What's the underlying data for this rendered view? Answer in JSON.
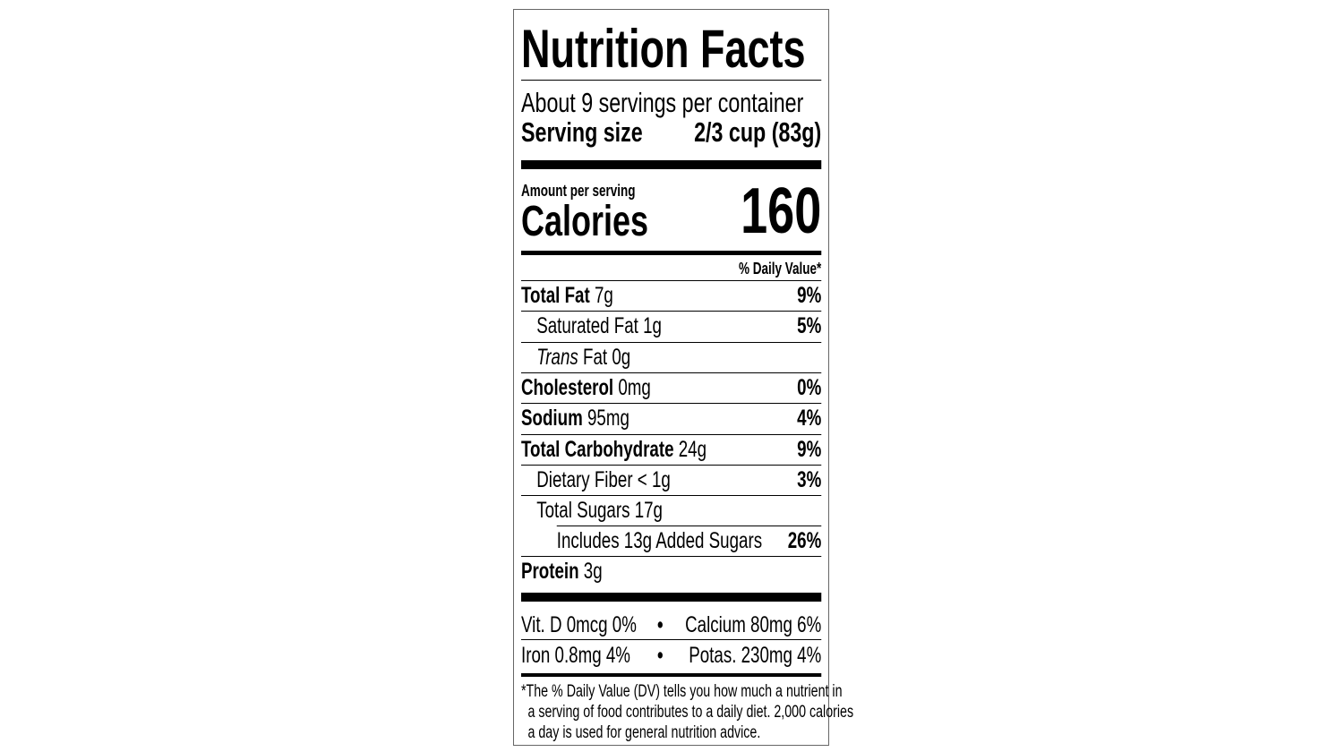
{
  "title": "Nutrition Facts",
  "servings": "About 9 servings per container",
  "serving_size": {
    "label": "Serving size",
    "value": "2/3 cup (83g)"
  },
  "amount_per_serving": "Amount per serving",
  "calories": {
    "label": "Calories",
    "value": "160"
  },
  "dv_header": "% Daily Value*",
  "rows": [
    {
      "name": "Total Fat",
      "amount": "7g",
      "dv": "9%"
    },
    {
      "name": "Saturated Fat",
      "amount": "1g",
      "dv": "5%"
    },
    {
      "name_italic": "Trans",
      "name": "Fat",
      "amount": "0g"
    },
    {
      "name": "Cholesterol",
      "amount": "0mg",
      "dv": "0%"
    },
    {
      "name": "Sodium",
      "amount": "95mg",
      "dv": "4%"
    },
    {
      "name": "Total Carbohydrate",
      "amount": "24g",
      "dv": "9%"
    },
    {
      "name": "Dietary Fiber",
      "amount": "< 1g",
      "dv": "3%"
    },
    {
      "name": "Total Sugars",
      "amount": "17g"
    },
    {
      "name": "Includes 13g Added Sugars",
      "dv": "26%"
    },
    {
      "name": "Protein",
      "amount": "3g"
    }
  ],
  "vitamins": [
    [
      "Vit. D 0mcg 0%",
      "Calcium 80mg 6%"
    ],
    [
      "Iron 0.8mg 4%",
      "Potas. 230mg 4%"
    ]
  ],
  "footnote": [
    "*The % Daily Value (DV) tells you how much a nutrient in",
    "a serving of food contributes to a daily diet. 2,000 calories",
    "a day is used for general nutrition advice."
  ]
}
